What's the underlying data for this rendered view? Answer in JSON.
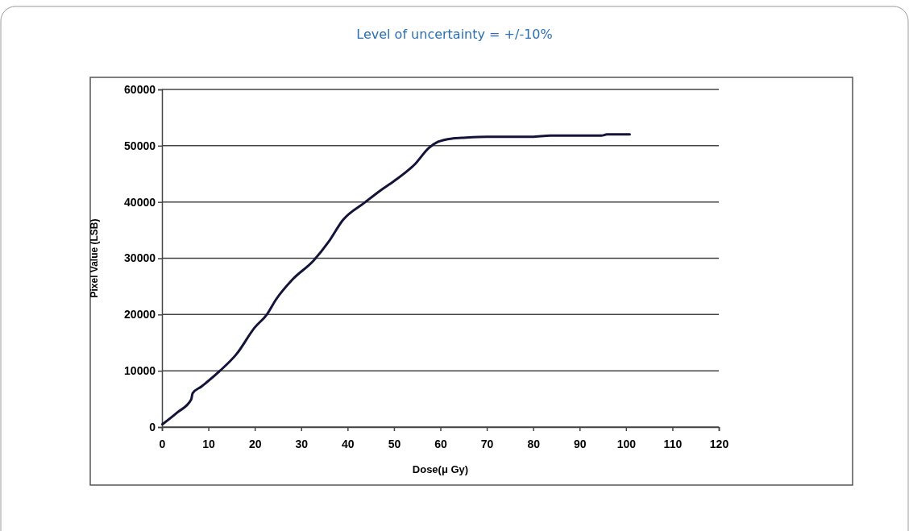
{
  "chart_data": {
    "type": "line",
    "title": "Level of uncertainty = +/-10%",
    "xlabel": "Dose(μ Gy)",
    "ylabel": "Pixel Value (LSB)",
    "xlim": [
      0,
      120
    ],
    "xticks": [
      0,
      10,
      20,
      30,
      40,
      50,
      60,
      70,
      80,
      90,
      100,
      110,
      120
    ],
    "ylim": [
      0,
      60000
    ],
    "yticks": [
      0,
      10000,
      20000,
      30000,
      40000,
      50000,
      60000
    ],
    "grid": "y",
    "marker": "none",
    "line_style": "solid",
    "series": [
      {
        "color": "#14143a",
        "x": [
          0.1,
          3.3,
          6.3,
          6.6,
          8.5,
          12.5,
          16,
          20,
          22.6,
          24.6,
          28.1,
          32.7,
          35.9,
          39,
          43.7,
          47,
          50,
          54.6,
          57.5,
          59.5,
          62.7,
          64.6,
          70,
          79.7,
          83.7,
          94.7,
          95.9,
          100.8
        ],
        "values": [
          500,
          2600,
          4900,
          6000,
          7200,
          10000,
          12900,
          17700,
          20000,
          22700,
          26200,
          29600,
          32900,
          36800,
          39900,
          42000,
          43700,
          46800,
          49600,
          50700,
          51300,
          51400,
          51600,
          51600,
          51800,
          51800,
          52000,
          52000
        ]
      }
    ]
  }
}
